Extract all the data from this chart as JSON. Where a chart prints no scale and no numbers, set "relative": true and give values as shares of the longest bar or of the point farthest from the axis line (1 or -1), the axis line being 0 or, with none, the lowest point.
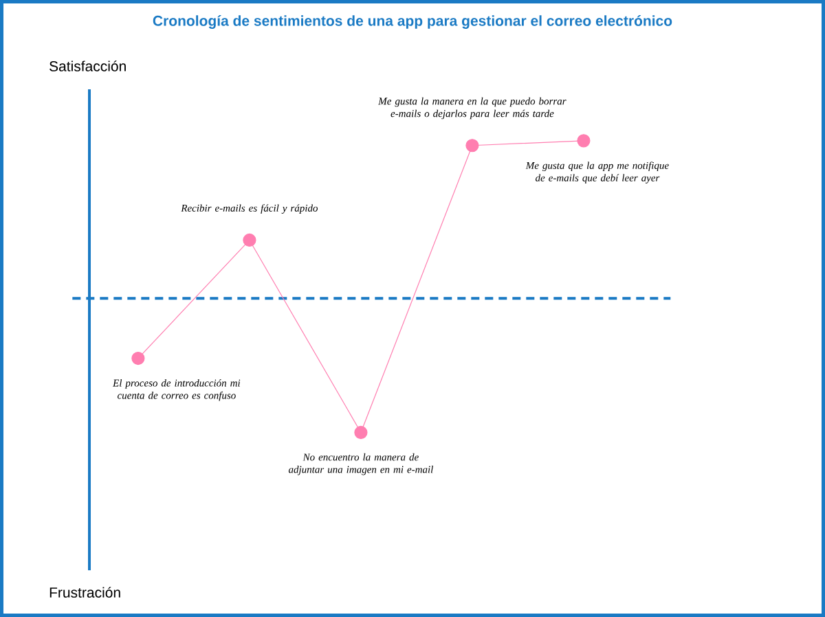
{
  "chart_data": {
    "type": "line",
    "title": "Cronología de sentimientos de una app para gestionar el correo electrónico",
    "categories": [
      null,
      null,
      null,
      null,
      null
    ],
    "relative": true,
    "series": [
      {
        "color": "#ff7eb0",
        "values": [
          -0.38,
          0.37,
          -0.85,
          0.97,
          1.0
        ]
      }
    ],
    "marker": "circle",
    "line_style": "solid",
    "ref_lines": [
      {
        "axis": "y",
        "value": 0,
        "color": "#1a7ac4",
        "line_style": "dashed"
      }
    ],
    "annotations": [
      "Satisfacción",
      "El proceso de introducción mi cuenta de correo es confuso",
      "Recibir e-mails es fácil y rápido",
      "No encuentro la manera de adjuntar una imagen en mi e-mail",
      "Me gusta la manera en la que puedo borrar e-mails o dejarlos para leer más tarde",
      "Me gusta que la app me notifique de e-mails que debí leer ayer",
      "Frustración"
    ]
  }
}
